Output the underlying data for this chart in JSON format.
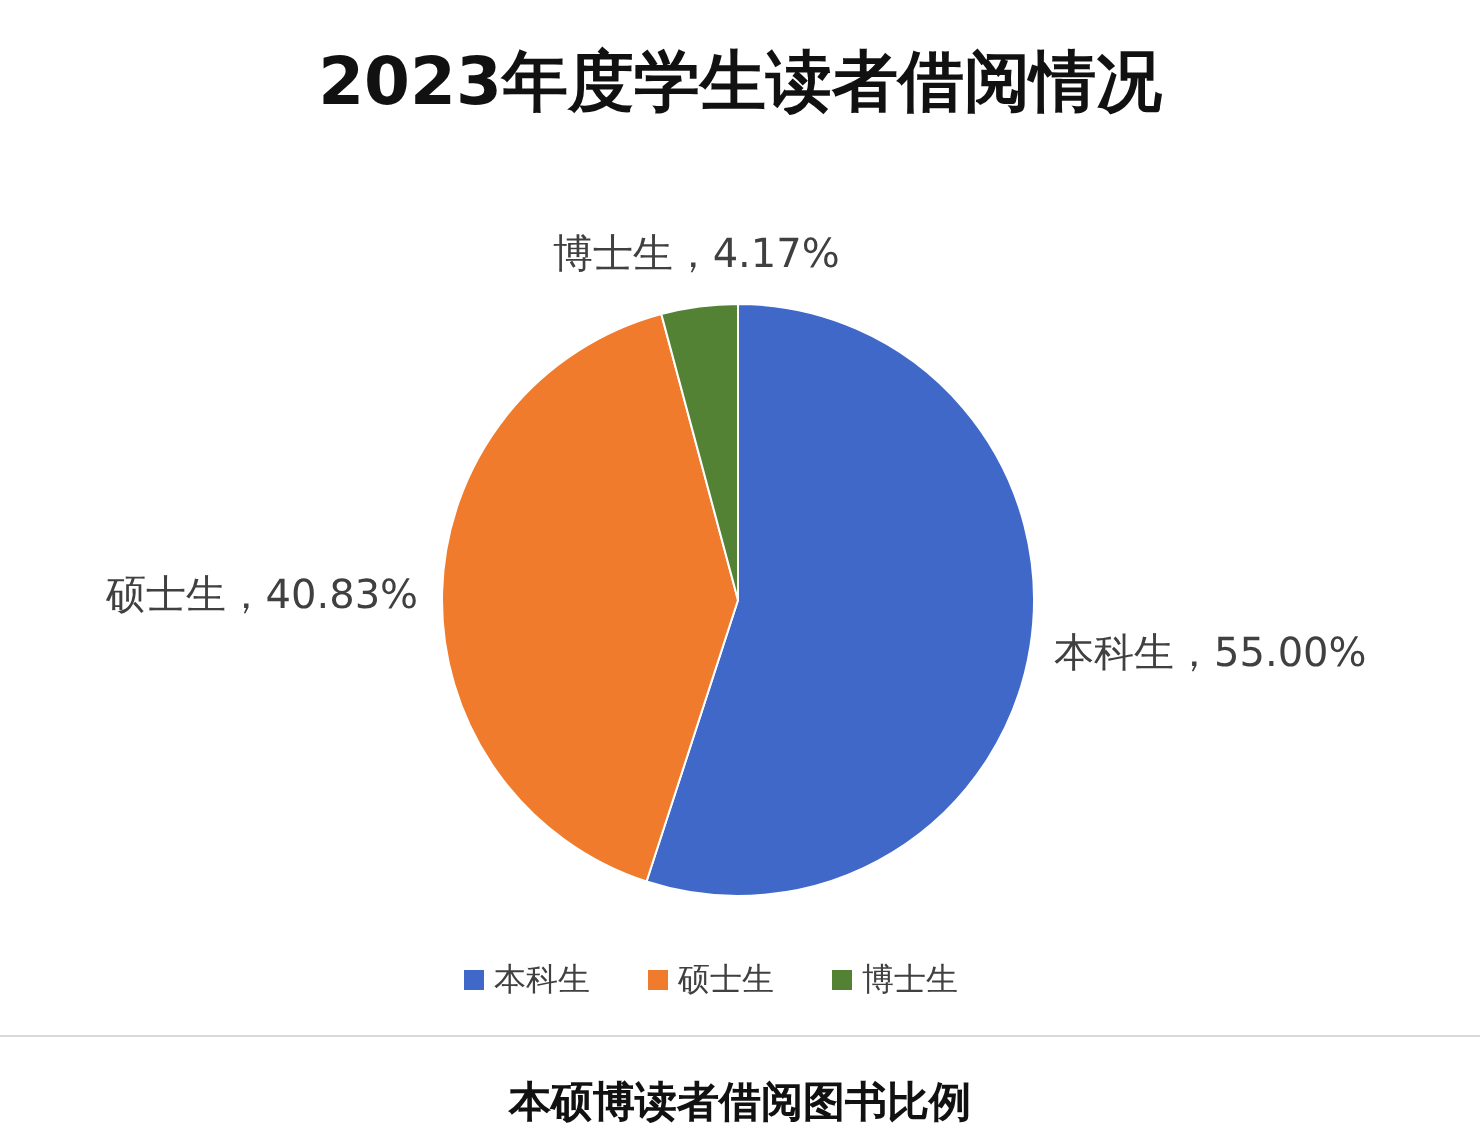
{
  "chart_data": {
    "type": "pie",
    "title": "2023年度学生读者借阅情况",
    "categories": [
      "本科生",
      "硕士生",
      "博士生"
    ],
    "values": [
      55.0,
      40.83,
      4.17
    ],
    "colors": [
      "#3f68c8",
      "#f07b2c",
      "#548235"
    ],
    "value_labels": [
      "本科生，55.00%",
      "硕士生，40.83%",
      "博士生，4.17%"
    ],
    "legend": "bottom",
    "annotations": [
      "本硕博读者借阅图书比例"
    ]
  }
}
